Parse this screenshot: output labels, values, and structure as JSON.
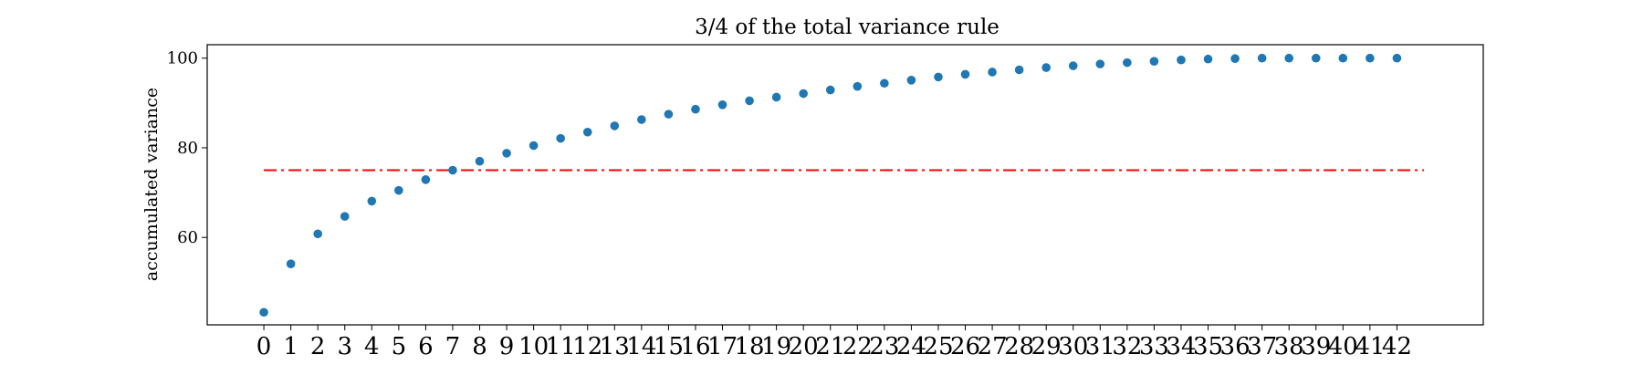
{
  "chart_data": {
    "type": "scatter",
    "title": "3/4 of the total variance rule",
    "xlabel": "",
    "ylabel": "accumulated variance",
    "x": [
      0,
      1,
      2,
      3,
      4,
      5,
      6,
      7,
      8,
      9,
      10,
      11,
      12,
      13,
      14,
      15,
      16,
      17,
      18,
      19,
      20,
      21,
      22,
      23,
      24,
      25,
      26,
      27,
      28,
      29,
      30,
      31,
      32,
      33,
      34,
      35,
      36,
      37,
      38,
      39,
      40,
      41,
      42
    ],
    "y": [
      43.3,
      54.1,
      60.8,
      64.7,
      68.1,
      70.5,
      72.9,
      75.0,
      77.0,
      78.8,
      80.5,
      82.1,
      83.5,
      84.9,
      86.3,
      87.5,
      88.6,
      89.6,
      90.5,
      91.3,
      92.1,
      92.9,
      93.7,
      94.4,
      95.1,
      95.8,
      96.4,
      96.9,
      97.4,
      97.9,
      98.3,
      98.7,
      99.0,
      99.3,
      99.6,
      99.8,
      99.9,
      100.0,
      100.0,
      100.0,
      100.0,
      100.0,
      100.0
    ],
    "xticks": [
      "0",
      "1",
      "2",
      "3",
      "4",
      "5",
      "6",
      "7",
      "8",
      "9",
      "10",
      "11",
      "12",
      "13",
      "14",
      "15",
      "16",
      "17",
      "18",
      "19",
      "20",
      "21",
      "22",
      "23",
      "24",
      "25",
      "26",
      "27",
      "28",
      "29",
      "30",
      "31",
      "32",
      "33",
      "34",
      "35",
      "36",
      "37",
      "38",
      "39",
      "40",
      "41",
      "42"
    ],
    "yticks": [
      "60",
      "80",
      "100"
    ],
    "ytick_values": [
      60,
      80,
      100
    ],
    "xlim": [
      -2.1,
      45.2
    ],
    "ylim": [
      40.5,
      103.0
    ],
    "reference_line": {
      "y": 75,
      "x_range": [
        0,
        43
      ],
      "style": "dash-dot",
      "color": "#ff0000"
    },
    "marker_color": "#1f77b4",
    "grid": false,
    "legend": "none"
  }
}
